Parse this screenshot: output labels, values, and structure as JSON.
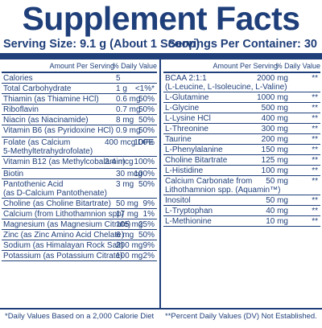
{
  "title": "Supplement Facts",
  "serving_size": "Serving Size: 9.1 g (About 1 Scoop)",
  "servings_per_container": "Servings Per Container: 30",
  "header": {
    "amount": "Amount Per Serving",
    "dv": "% Daily Value"
  },
  "left_rows": [
    {
      "name": "Calories",
      "amount": "5",
      "dv": "",
      "h": 13
    },
    {
      "name": "Total Carbohydrate",
      "amount": "1 g",
      "dv": "<1%*",
      "h": 13
    },
    {
      "name": "Thiamin (as Thiamine HCl)",
      "amount": "0.6 mg",
      "dv": "50%",
      "h": 13
    },
    {
      "name": "Riboflavin",
      "amount": "0.7 mg",
      "dv": "50%",
      "h": 13
    },
    {
      "name": "Niacin (as Niacinamide)",
      "amount": "8 mg",
      "dv": "50%",
      "h": 13
    },
    {
      "name": "Vitamin B6 (as Pyridoxine HCl)",
      "amount": "0.9 mg",
      "dv": "50%",
      "h": 15
    },
    {
      "name": "Folate (as Calcium\n5-Methyltetrahydrofolate)",
      "amount": "400 mcg DFE",
      "dv": "100%",
      "h": 24,
      "wide": true
    },
    {
      "name": "Vitamin B12 (as Methylcobalamin)",
      "amount": "2.4 mcg",
      "dv": "100%",
      "h": 15,
      "wide": true
    },
    {
      "name": "Biotin",
      "amount": "30 mcg",
      "dv": "100%",
      "h": 13
    },
    {
      "name": "Pantothenic Acid\n(as D-Calcium Pantothenate)",
      "amount": "3 mg",
      "dv": "50%",
      "h": 24
    },
    {
      "name": "Choline (as Choline Bitartrate)",
      "amount": "50 mg",
      "dv": "9%",
      "h": 13
    },
    {
      "name": "Calcium (from Lithothamnion spp)",
      "amount": "17 mg",
      "dv": "1%",
      "h": 13
    },
    {
      "name": "Magnesium (as Magnesium Citrate)",
      "amount": "105 mg",
      "dv": "25%",
      "h": 13
    },
    {
      "name": "Zinc (as Zinc Amino Acid Chelate)",
      "amount": "6 mg",
      "dv": "50%",
      "h": 13
    },
    {
      "name": "Sodium (as Himalayan Rock Salt)",
      "amount": "200 mg",
      "dv": "9%",
      "h": 13
    },
    {
      "name": "Potassium (as Potassium Citrate)",
      "amount": "100 mg",
      "dv": "2%",
      "h": 13
    }
  ],
  "right_rows": [
    {
      "name": "BCAA 2:1:1\n(L-Leucine, L-Isoleucine, L-Valine)",
      "amount": "2000 mg",
      "dv": "**",
      "h": 24
    },
    {
      "name": "L-Glutamine",
      "amount": "1000 mg",
      "dv": "**",
      "h": 13
    },
    {
      "name": "L-Glycine",
      "amount": "500 mg",
      "dv": "**",
      "h": 13
    },
    {
      "name": "L-Lysine HCl",
      "amount": "400 mg",
      "dv": "**",
      "h": 13
    },
    {
      "name": "L-Threonine",
      "amount": "300 mg",
      "dv": "**",
      "h": 13
    },
    {
      "name": "Taurine",
      "amount": "200 mg",
      "dv": "**",
      "h": 13
    },
    {
      "name": "L-Phenylalanine",
      "amount": "150 mg",
      "dv": "**",
      "h": 13
    },
    {
      "name": "Choline Bitartrate",
      "amount": "125 mg",
      "dv": "**",
      "h": 13
    },
    {
      "name": "L-Histidine",
      "amount": "100 mg",
      "dv": "**",
      "h": 13
    },
    {
      "name": "Calcium Carbonate from\nLithothamnion spp. (Aquamin™)",
      "amount": "50 mg",
      "dv": "**",
      "h": 24
    },
    {
      "name": "Inositol",
      "amount": "50 mg",
      "dv": "**",
      "h": 13
    },
    {
      "name": "L-Tryptophan",
      "amount": "40 mg",
      "dv": "**",
      "h": 13
    },
    {
      "name": "L-Methionine",
      "amount": "10 mg",
      "dv": "**",
      "h": 13
    }
  ],
  "footer_left": "*Daily Values Based on a 2,000 Calorie Diet",
  "footer_right": "**Percent Daily Values (DV) Not Established."
}
